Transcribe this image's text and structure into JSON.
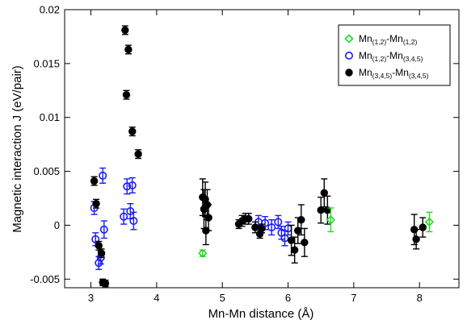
{
  "chart_data": {
    "type": "scatter",
    "xlabel": "Mn-Mn distance (Å)",
    "ylabel": "Magnetic interaction J (eV/pair)",
    "xlim": [
      2.6,
      8.6
    ],
    "ylim": [
      -0.0058,
      0.02
    ],
    "xticks": [
      3,
      4,
      5,
      6,
      7,
      8
    ],
    "xtick_labels": [
      "3",
      "4",
      "5",
      "6",
      "7",
      "8"
    ],
    "yticks": [
      -0.005,
      0,
      0.005,
      0.01,
      0.015,
      0.02
    ],
    "ytick_labels": [
      "-0.005",
      "0",
      "0.005",
      "0.01",
      "0.015",
      "0.02"
    ],
    "grid": false,
    "legend_position": "top-right",
    "series": [
      {
        "name": "Mn(1,2)-Mn(1,2)",
        "legend": {
          "main1": "Mn",
          "sub1": "(1,2)",
          "mid": "-Mn",
          "sub2": "(1,2)"
        },
        "color": "#22dd22",
        "marker": "open-diamond",
        "points": [
          {
            "x": 4.7,
            "y": -0.0026,
            "err": 0.0003
          },
          {
            "x": 6.65,
            "y": 0.0005,
            "err": 0.0011
          },
          {
            "x": 8.15,
            "y": 0.0003,
            "err": 0.0009
          }
        ]
      },
      {
        "name": "Mn(1,2)-Mn(3,4,5)",
        "legend": {
          "main1": "Mn",
          "sub1": "(1,2)",
          "mid": "-Mn",
          "sub2": "(3,4,5)"
        },
        "color": "#1a1aff",
        "marker": "open-circle",
        "points": [
          {
            "x": 3.05,
            "y": 0.0016,
            "err": 0.0006
          },
          {
            "x": 3.07,
            "y": -0.0013,
            "err": 0.0006
          },
          {
            "x": 3.12,
            "y": -0.0035,
            "err": 0.0006
          },
          {
            "x": 3.15,
            "y": -0.003,
            "err": 0.0006
          },
          {
            "x": 3.18,
            "y": 0.0046,
            "err": 0.0007
          },
          {
            "x": 3.2,
            "y": -0.0004,
            "err": 0.0008
          },
          {
            "x": 3.5,
            "y": 0.0008,
            "err": 0.0007
          },
          {
            "x": 3.55,
            "y": 0.0036,
            "err": 0.0007
          },
          {
            "x": 3.6,
            "y": 0.0013,
            "err": 0.0007
          },
          {
            "x": 3.63,
            "y": 0.0037,
            "err": 0.0007
          },
          {
            "x": 3.65,
            "y": 0.0004,
            "err": 0.0008
          },
          {
            "x": 5.55,
            "y": 0.0003,
            "err": 0.0006
          },
          {
            "x": 5.65,
            "y": 0.0002,
            "err": 0.0006
          },
          {
            "x": 5.75,
            "y": -0.0002,
            "err": 0.0007
          },
          {
            "x": 5.85,
            "y": 0.0003,
            "err": 0.0006
          },
          {
            "x": 5.9,
            "y": -0.0007,
            "err": 0.0006
          },
          {
            "x": 5.95,
            "y": -0.0012,
            "err": 0.0007
          },
          {
            "x": 6.0,
            "y": -0.0003,
            "err": 0.0006
          }
        ]
      },
      {
        "name": "Mn(3,4,5)-Mn(3,4,5)",
        "legend": {
          "main1": "Mn",
          "sub1": "(3,4,5)",
          "mid": "-Mn",
          "sub2": "(3,4,5)"
        },
        "color": "#000000",
        "marker": "filled-circle",
        "points": [
          {
            "x": 3.05,
            "y": 0.0041,
            "err": 0.0004
          },
          {
            "x": 3.08,
            "y": 0.002,
            "err": 0.0004
          },
          {
            "x": 3.12,
            "y": -0.0019,
            "err": 0.0004
          },
          {
            "x": 3.16,
            "y": -0.0026,
            "err": 0.0004
          },
          {
            "x": 3.18,
            "y": -0.0053,
            "err": 0.0003
          },
          {
            "x": 3.22,
            "y": -0.0054,
            "err": 0.0003
          },
          {
            "x": 3.52,
            "y": 0.0181,
            "err": 0.0004
          },
          {
            "x": 3.54,
            "y": 0.0121,
            "err": 0.0004
          },
          {
            "x": 3.57,
            "y": 0.0163,
            "err": 0.0004
          },
          {
            "x": 3.63,
            "y": 0.0087,
            "err": 0.0004
          },
          {
            "x": 3.72,
            "y": 0.0066,
            "err": 0.0004
          },
          {
            "x": 4.7,
            "y": 0.0026,
            "err": 0.0017
          },
          {
            "x": 4.72,
            "y": 0.0015,
            "err": 0.0018
          },
          {
            "x": 4.74,
            "y": 0.0024,
            "err": 0.0016
          },
          {
            "x": 4.75,
            "y": -0.0005,
            "err": 0.0013
          },
          {
            "x": 4.77,
            "y": 0.0019,
            "err": 0.0014
          },
          {
            "x": 4.79,
            "y": 0.0007,
            "err": 0.0012
          },
          {
            "x": 5.25,
            "y": 0.0001,
            "err": 0.0004
          },
          {
            "x": 5.3,
            "y": 0.0004,
            "err": 0.0005
          },
          {
            "x": 5.35,
            "y": 0.0006,
            "err": 0.0005
          },
          {
            "x": 5.4,
            "y": 0.0006,
            "err": 0.0005
          },
          {
            "x": 5.5,
            "y": -0.0002,
            "err": 0.0005
          },
          {
            "x": 5.57,
            "y": -0.0008,
            "err": 0.0004
          },
          {
            "x": 5.6,
            "y": -0.0003,
            "err": 0.0004
          },
          {
            "x": 6.05,
            "y": -0.0014,
            "err": 0.0014
          },
          {
            "x": 6.1,
            "y": -0.0023,
            "err": 0.0012
          },
          {
            "x": 6.15,
            "y": -0.0005,
            "err": 0.0012
          },
          {
            "x": 6.2,
            "y": 0.0005,
            "err": 0.0014
          },
          {
            "x": 6.25,
            "y": -0.0016,
            "err": 0.0013
          },
          {
            "x": 6.5,
            "y": 0.0014,
            "err": 0.0012
          },
          {
            "x": 6.55,
            "y": 0.003,
            "err": 0.0013
          },
          {
            "x": 6.6,
            "y": 0.0014,
            "err": 0.0013
          },
          {
            "x": 7.92,
            "y": -0.0004,
            "err": 0.0014
          },
          {
            "x": 7.95,
            "y": -0.0013,
            "err": 0.0009
          },
          {
            "x": 8.05,
            "y": -0.0002,
            "err": 0.0009
          }
        ]
      }
    ]
  }
}
